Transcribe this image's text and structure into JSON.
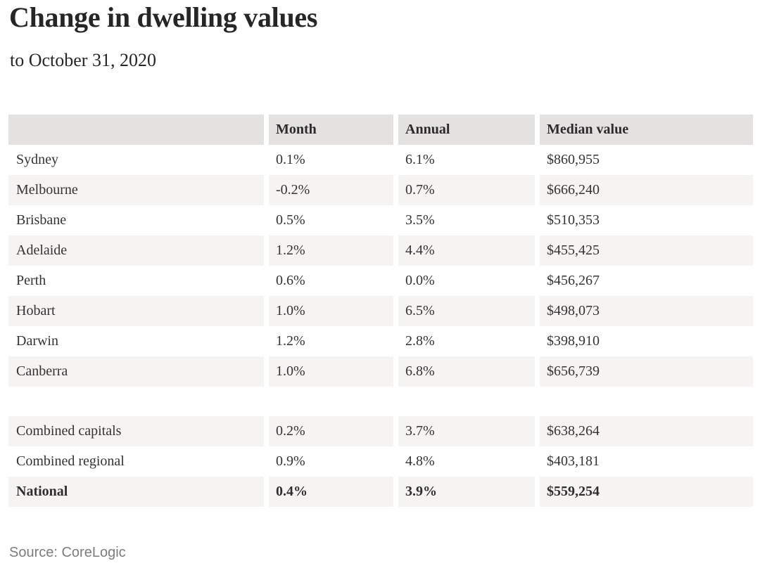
{
  "chart_data": {
    "type": "table",
    "title": "Change in dwelling values",
    "subtitle": "to October 31, 2020",
    "source": "Source: CoreLogic",
    "columns": [
      "",
      "Month",
      "Annual",
      "Median value"
    ],
    "rows": [
      {
        "label": "Sydney",
        "month": "0.1%",
        "annual": "6.1%",
        "median": "$860,955",
        "month_pct": 0.1,
        "annual_pct": 6.1,
        "median_aud": 860955,
        "shaded": false,
        "bold": false
      },
      {
        "label": "Melbourne",
        "month": "-0.2%",
        "annual": "0.7%",
        "median": "$666,240",
        "month_pct": -0.2,
        "annual_pct": 0.7,
        "median_aud": 666240,
        "shaded": true,
        "bold": false
      },
      {
        "label": "Brisbane",
        "month": "0.5%",
        "annual": "3.5%",
        "median": "$510,353",
        "month_pct": 0.5,
        "annual_pct": 3.5,
        "median_aud": 510353,
        "shaded": false,
        "bold": false
      },
      {
        "label": "Adelaide",
        "month": "1.2%",
        "annual": "4.4%",
        "median": "$455,425",
        "month_pct": 1.2,
        "annual_pct": 4.4,
        "median_aud": 455425,
        "shaded": true,
        "bold": false
      },
      {
        "label": "Perth",
        "month": "0.6%",
        "annual": "0.0%",
        "median": "$456,267",
        "month_pct": 0.6,
        "annual_pct": 0.0,
        "median_aud": 456267,
        "shaded": false,
        "bold": false
      },
      {
        "label": "Hobart",
        "month": "1.0%",
        "annual": "6.5%",
        "median": "$498,073",
        "month_pct": 1.0,
        "annual_pct": 6.5,
        "median_aud": 498073,
        "shaded": true,
        "bold": false
      },
      {
        "label": "Darwin",
        "month": "1.2%",
        "annual": "2.8%",
        "median": "$398,910",
        "month_pct": 1.2,
        "annual_pct": 2.8,
        "median_aud": 398910,
        "shaded": false,
        "bold": false
      },
      {
        "label": "Canberra",
        "month": "1.0%",
        "annual": "6.8%",
        "median": "$656,739",
        "month_pct": 1.0,
        "annual_pct": 6.8,
        "median_aud": 656739,
        "shaded": true,
        "bold": false
      },
      {
        "spacer": true
      },
      {
        "label": "Combined capitals",
        "month": "0.2%",
        "annual": "3.7%",
        "median": "$638,264",
        "month_pct": 0.2,
        "annual_pct": 3.7,
        "median_aud": 638264,
        "shaded": true,
        "bold": false
      },
      {
        "label": "Combined regional",
        "month": "0.9%",
        "annual": "4.8%",
        "median": "$403,181",
        "month_pct": 0.9,
        "annual_pct": 4.8,
        "median_aud": 403181,
        "shaded": false,
        "bold": false
      },
      {
        "label": "National",
        "month": "0.4%",
        "annual": "3.9%",
        "median": "$559,254",
        "month_pct": 0.4,
        "annual_pct": 3.9,
        "median_aud": 559254,
        "shaded": true,
        "bold": true
      }
    ],
    "layout": {
      "grid": "off",
      "legend": "none",
      "row_shading_alternating": true,
      "summary_gap_before": "Combined capitals"
    }
  },
  "colors": {
    "header_background": "#e3e2e0",
    "shaded_row_background": "#f5f4f2",
    "body_text": "#333333",
    "title_text": "#262626",
    "source_text": "#7d7d7d",
    "page_background": "#ffffff"
  }
}
